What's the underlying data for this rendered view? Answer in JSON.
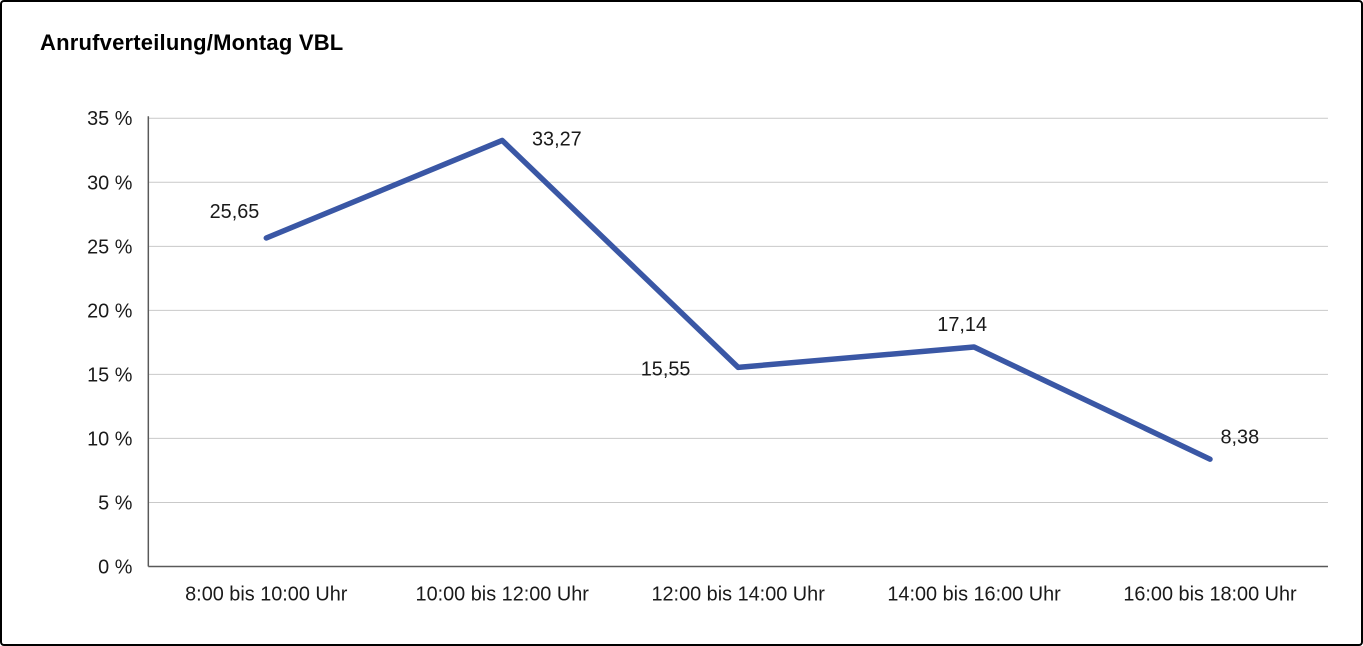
{
  "chart_data": {
    "type": "line",
    "title": "Anrufverteilung/Montag VBL",
    "categories": [
      "8:00 bis 10:00 Uhr",
      "10:00 bis 12:00 Uhr",
      "12:00 bis 14:00 Uhr",
      "14:00 bis 16:00 Uhr",
      "16:00 bis 18:00 Uhr"
    ],
    "values": [
      25.65,
      33.27,
      15.55,
      17.14,
      8.38
    ],
    "point_labels": [
      "25,65",
      "33,27",
      "15,55",
      "17,14",
      "8,38"
    ],
    "y_ticks": [
      0,
      5,
      10,
      15,
      20,
      25,
      30,
      35
    ],
    "y_tick_labels": [
      "0 %",
      "5 %",
      "10 %",
      "15 %",
      "20 %",
      "25 %",
      "30 %",
      "35 %"
    ],
    "ylim": [
      0,
      35
    ],
    "xlabel": "",
    "ylabel": "",
    "grid": "horizontal",
    "legend": "none",
    "line_color": "#3a57a5",
    "grid_color": "#c9c9c9",
    "axis_color": "#595959",
    "text_color": "#1a1a1a"
  }
}
